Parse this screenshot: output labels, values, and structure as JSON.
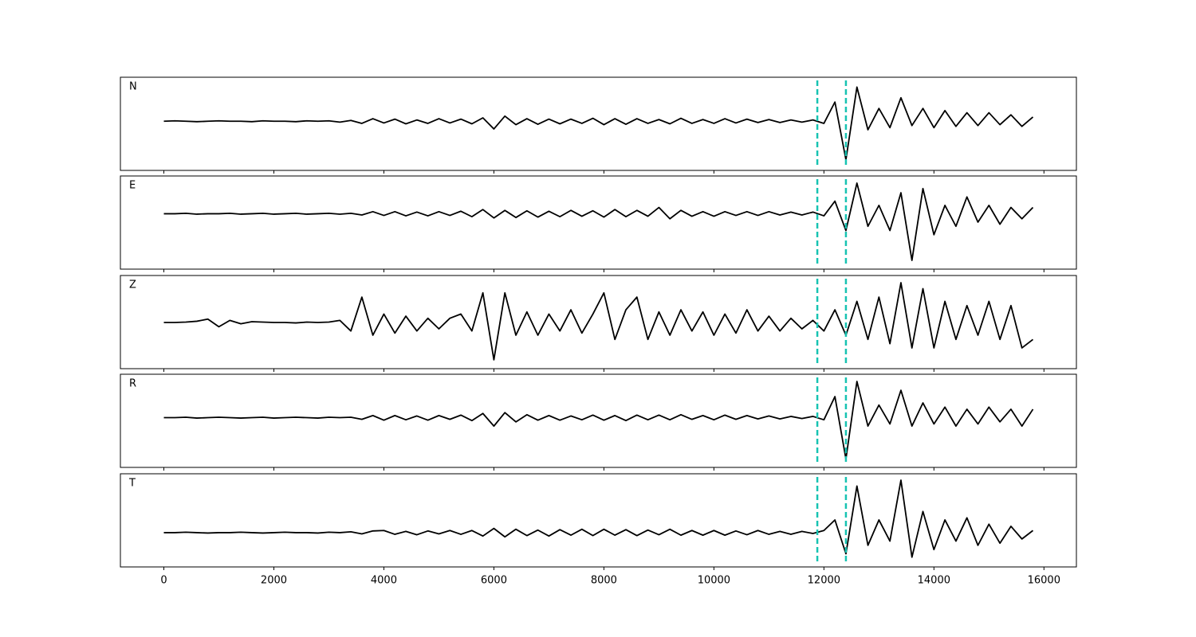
{
  "chart_data": [
    {
      "type": "line",
      "label": "N",
      "color": "#000000",
      "vlines": [
        11880,
        12400
      ],
      "vline_color": "#17c3b2",
      "xlim": [
        -790,
        16590
      ],
      "ylim": [
        -1.15,
        1.03
      ],
      "xticks": [
        0,
        2000,
        4000,
        6000,
        8000,
        10000,
        12000,
        14000,
        16000
      ],
      "x": [
        0,
        200,
        400,
        600,
        800,
        1000,
        1200,
        1400,
        1600,
        1800,
        2000,
        2200,
        2400,
        2600,
        2800,
        3000,
        3200,
        3400,
        3600,
        3800,
        4000,
        4200,
        4400,
        4600,
        4800,
        5000,
        5200,
        5400,
        5600,
        5800,
        6000,
        6200,
        6400,
        6600,
        6800,
        7000,
        7200,
        7400,
        7600,
        7800,
        8000,
        8200,
        8400,
        8600,
        8800,
        9000,
        9200,
        9400,
        9600,
        9800,
        10000,
        10200,
        10400,
        10600,
        10800,
        11000,
        11200,
        11400,
        11600,
        11800,
        12000,
        12200,
        12400,
        12600,
        12800,
        13000,
        13200,
        13400,
        13600,
        13800,
        14000,
        14200,
        14400,
        14600,
        14800,
        15000,
        15200,
        15400,
        15600,
        15800
      ],
      "values": [
        0,
        0.01,
        0,
        -0.01,
        0,
        0.01,
        0,
        0,
        -0.01,
        0.01,
        0,
        0,
        -0.01,
        0.01,
        0,
        0.01,
        -0.02,
        0.02,
        -0.05,
        0.06,
        -0.04,
        0.05,
        -0.06,
        0.03,
        -0.05,
        0.06,
        -0.04,
        0.05,
        -0.06,
        0.08,
        -0.18,
        0.12,
        -0.08,
        0.06,
        -0.07,
        0.05,
        -0.06,
        0.05,
        -0.05,
        0.07,
        -0.08,
        0.06,
        -0.07,
        0.06,
        -0.05,
        0.04,
        -0.06,
        0.07,
        -0.05,
        0.04,
        -0.05,
        0.06,
        -0.04,
        0.05,
        -0.03,
        0.04,
        -0.03,
        0.03,
        -0.02,
        0.03,
        -0.05,
        0.45,
        -0.9,
        0.8,
        -0.2,
        0.3,
        -0.15,
        0.55,
        -0.1,
        0.3,
        -0.15,
        0.25,
        -0.12,
        0.2,
        -0.1,
        0.2,
        -0.08,
        0.15,
        -0.12,
        0.1
      ]
    },
    {
      "type": "line",
      "label": "E",
      "color": "#000000",
      "vlines": [
        11880,
        12400
      ],
      "vline_color": "#17c3b2",
      "xlim": [
        -790,
        16590
      ],
      "ylim": [
        -1.32,
        0.9
      ],
      "xticks": [
        0,
        2000,
        4000,
        6000,
        8000,
        10000,
        12000,
        14000,
        16000
      ],
      "x": [
        0,
        200,
        400,
        600,
        800,
        1000,
        1200,
        1400,
        1600,
        1800,
        2000,
        2200,
        2400,
        2600,
        2800,
        3000,
        3200,
        3400,
        3600,
        3800,
        4000,
        4200,
        4400,
        4600,
        4800,
        5000,
        5200,
        5400,
        5600,
        5800,
        6000,
        6200,
        6400,
        6600,
        6800,
        7000,
        7200,
        7400,
        7600,
        7800,
        8000,
        8200,
        8400,
        8600,
        8800,
        9000,
        9200,
        9400,
        9600,
        9800,
        10000,
        10200,
        10400,
        10600,
        10800,
        11000,
        11200,
        11400,
        11600,
        11800,
        12000,
        12200,
        12400,
        12600,
        12800,
        13000,
        13200,
        13400,
        13600,
        13800,
        14000,
        14200,
        14400,
        14600,
        14800,
        15000,
        15200,
        15400,
        15600,
        15800
      ],
      "values": [
        0,
        0,
        0.01,
        -0.01,
        0,
        0,
        0.01,
        -0.01,
        0,
        0.01,
        -0.01,
        0,
        0.01,
        -0.01,
        0,
        0.01,
        -0.01,
        0.01,
        -0.03,
        0.05,
        -0.04,
        0.05,
        -0.05,
        0.04,
        -0.05,
        0.05,
        -0.04,
        0.06,
        -0.07,
        0.1,
        -0.1,
        0.08,
        -0.09,
        0.07,
        -0.08,
        0.06,
        -0.07,
        0.08,
        -0.06,
        0.07,
        -0.08,
        0.1,
        -0.07,
        0.08,
        -0.06,
        0.15,
        -0.12,
        0.08,
        -0.06,
        0.05,
        -0.06,
        0.05,
        -0.04,
        0.05,
        -0.04,
        0.05,
        -0.03,
        0.04,
        -0.03,
        0.04,
        -0.05,
        0.3,
        -0.4,
        0.73,
        -0.3,
        0.2,
        -0.4,
        0.5,
        -1.11,
        0.6,
        -0.5,
        0.2,
        -0.3,
        0.4,
        -0.2,
        0.2,
        -0.25,
        0.15,
        -0.12,
        0.15
      ]
    },
    {
      "type": "line",
      "label": "Z",
      "color": "#000000",
      "vlines": [
        11880,
        12400
      ],
      "vline_color": "#17c3b2",
      "xlim": [
        -790,
        16590
      ],
      "ylim": [
        -1.09,
        1.11
      ],
      "xticks": [
        0,
        2000,
        4000,
        6000,
        8000,
        10000,
        12000,
        14000,
        16000
      ],
      "x": [
        0,
        200,
        400,
        600,
        800,
        1000,
        1200,
        1400,
        1600,
        1800,
        2000,
        2200,
        2400,
        2600,
        2800,
        3000,
        3200,
        3400,
        3600,
        3800,
        4000,
        4200,
        4400,
        4600,
        4800,
        5000,
        5200,
        5400,
        5600,
        5800,
        6000,
        6200,
        6400,
        6600,
        6800,
        7000,
        7200,
        7400,
        7600,
        7800,
        8000,
        8200,
        8400,
        8600,
        8800,
        9000,
        9200,
        9400,
        9600,
        9800,
        10000,
        10200,
        10400,
        10600,
        10800,
        11000,
        11200,
        11400,
        11600,
        11800,
        12000,
        12200,
        12400,
        12600,
        12800,
        13000,
        13200,
        13400,
        13600,
        13800,
        14000,
        14200,
        14400,
        14600,
        14800,
        15000,
        15200,
        15400,
        15600,
        15800
      ],
      "values": [
        0,
        0,
        0.01,
        0.03,
        0.08,
        -0.1,
        0.05,
        -0.03,
        0.02,
        0.01,
        0,
        0,
        -0.01,
        0.01,
        0,
        0.01,
        0.05,
        -0.2,
        0.6,
        -0.3,
        0.2,
        -0.25,
        0.15,
        -0.2,
        0.1,
        -0.15,
        0.1,
        0.2,
        -0.2,
        0.7,
        -0.88,
        0.7,
        -0.3,
        0.25,
        -0.3,
        0.2,
        -0.2,
        0.3,
        -0.25,
        0.2,
        0.7,
        -0.4,
        0.3,
        0.6,
        -0.4,
        0.25,
        -0.3,
        0.3,
        -0.2,
        0.25,
        -0.3,
        0.2,
        -0.25,
        0.3,
        -0.2,
        0.15,
        -0.2,
        0.1,
        -0.15,
        0.05,
        -0.2,
        0.3,
        -0.3,
        0.5,
        -0.4,
        0.6,
        -0.5,
        0.94,
        -0.6,
        0.8,
        -0.6,
        0.5,
        -0.4,
        0.4,
        -0.3,
        0.5,
        -0.4,
        0.4,
        -0.6,
        -0.4
      ]
    },
    {
      "type": "line",
      "label": "R",
      "color": "#000000",
      "vlines": [
        11880,
        12400
      ],
      "vline_color": "#17c3b2",
      "xlim": [
        -790,
        16590
      ],
      "ylim": [
        -1.18,
        1.03
      ],
      "xticks": [
        0,
        2000,
        4000,
        6000,
        8000,
        10000,
        12000,
        14000,
        16000
      ],
      "x": [
        0,
        200,
        400,
        600,
        800,
        1000,
        1200,
        1400,
        1600,
        1800,
        2000,
        2200,
        2400,
        2600,
        2800,
        3000,
        3200,
        3400,
        3600,
        3800,
        4000,
        4200,
        4400,
        4600,
        4800,
        5000,
        5200,
        5400,
        5600,
        5800,
        6000,
        6200,
        6400,
        6600,
        6800,
        7000,
        7200,
        7400,
        7600,
        7800,
        8000,
        8200,
        8400,
        8600,
        8800,
        9000,
        9200,
        9400,
        9600,
        9800,
        10000,
        10200,
        10400,
        10600,
        10800,
        11000,
        11200,
        11400,
        11600,
        11800,
        12000,
        12200,
        12400,
        12600,
        12800,
        13000,
        13200,
        13400,
        13600,
        13800,
        14000,
        14200,
        14400,
        14600,
        14800,
        15000,
        15200,
        15400,
        15600,
        15800
      ],
      "values": [
        0,
        0,
        0.01,
        -0.01,
        0,
        0.01,
        0,
        -0.01,
        0,
        0.01,
        -0.01,
        0,
        0.01,
        0,
        -0.01,
        0.01,
        0,
        0.01,
        -0.04,
        0.05,
        -0.06,
        0.05,
        -0.05,
        0.04,
        -0.06,
        0.05,
        -0.04,
        0.06,
        -0.07,
        0.1,
        -0.2,
        0.12,
        -0.1,
        0.07,
        -0.06,
        0.05,
        -0.06,
        0.04,
        -0.05,
        0.06,
        -0.06,
        0.05,
        -0.07,
        0.06,
        -0.05,
        0.06,
        -0.05,
        0.07,
        -0.04,
        0.05,
        -0.05,
        0.06,
        -0.04,
        0.05,
        -0.03,
        0.04,
        -0.03,
        0.03,
        -0.02,
        0.03,
        -0.05,
        0.5,
        -0.98,
        0.86,
        -0.2,
        0.3,
        -0.15,
        0.65,
        -0.2,
        0.35,
        -0.15,
        0.25,
        -0.2,
        0.2,
        -0.15,
        0.25,
        -0.1,
        0.2,
        -0.2,
        0.2
      ]
    },
    {
      "type": "line",
      "label": "T",
      "color": "#000000",
      "vlines": [
        11880,
        12400
      ],
      "vline_color": "#17c3b2",
      "xlim": [
        -790,
        16590
      ],
      "ylim": [
        -0.81,
        1.39
      ],
      "xticks": [
        0,
        2000,
        4000,
        6000,
        8000,
        10000,
        12000,
        14000,
        16000
      ],
      "x": [
        0,
        200,
        400,
        600,
        800,
        1000,
        1200,
        1400,
        1600,
        1800,
        2000,
        2200,
        2400,
        2600,
        2800,
        3000,
        3200,
        3400,
        3600,
        3800,
        4000,
        4200,
        4400,
        4600,
        4800,
        5000,
        5200,
        5400,
        5600,
        5800,
        6000,
        6200,
        6400,
        6600,
        6800,
        7000,
        7200,
        7400,
        7600,
        7800,
        8000,
        8200,
        8400,
        8600,
        8800,
        9000,
        9200,
        9400,
        9600,
        9800,
        10000,
        10200,
        10400,
        10600,
        10800,
        11000,
        11200,
        11400,
        11600,
        11800,
        12000,
        12200,
        12400,
        12600,
        12800,
        13000,
        13200,
        13400,
        13600,
        13800,
        14000,
        14200,
        14400,
        14600,
        14800,
        15000,
        15200,
        15400,
        15600,
        15800
      ],
      "values": [
        0,
        0,
        0.01,
        0,
        -0.01,
        0,
        0,
        0.01,
        0,
        -0.01,
        0,
        0.01,
        0,
        0,
        -0.01,
        0.01,
        0,
        0.02,
        -0.03,
        0.04,
        0.05,
        -0.04,
        0.03,
        -0.05,
        0.04,
        -0.03,
        0.05,
        -0.04,
        0.05,
        -0.08,
        0.1,
        -0.1,
        0.08,
        -0.07,
        0.06,
        -0.08,
        0.07,
        -0.06,
        0.08,
        -0.07,
        0.08,
        -0.06,
        0.07,
        -0.07,
        0.06,
        -0.05,
        0.08,
        -0.06,
        0.05,
        -0.06,
        0.05,
        -0.06,
        0.04,
        -0.05,
        0.05,
        -0.04,
        0.03,
        -0.04,
        0.03,
        -0.02,
        0.05,
        0.3,
        -0.5,
        1.1,
        -0.3,
        0.3,
        -0.2,
        1.24,
        -0.58,
        0.5,
        -0.4,
        0.3,
        -0.2,
        0.35,
        -0.3,
        0.2,
        -0.25,
        0.15,
        -0.15,
        0.05
      ]
    }
  ]
}
